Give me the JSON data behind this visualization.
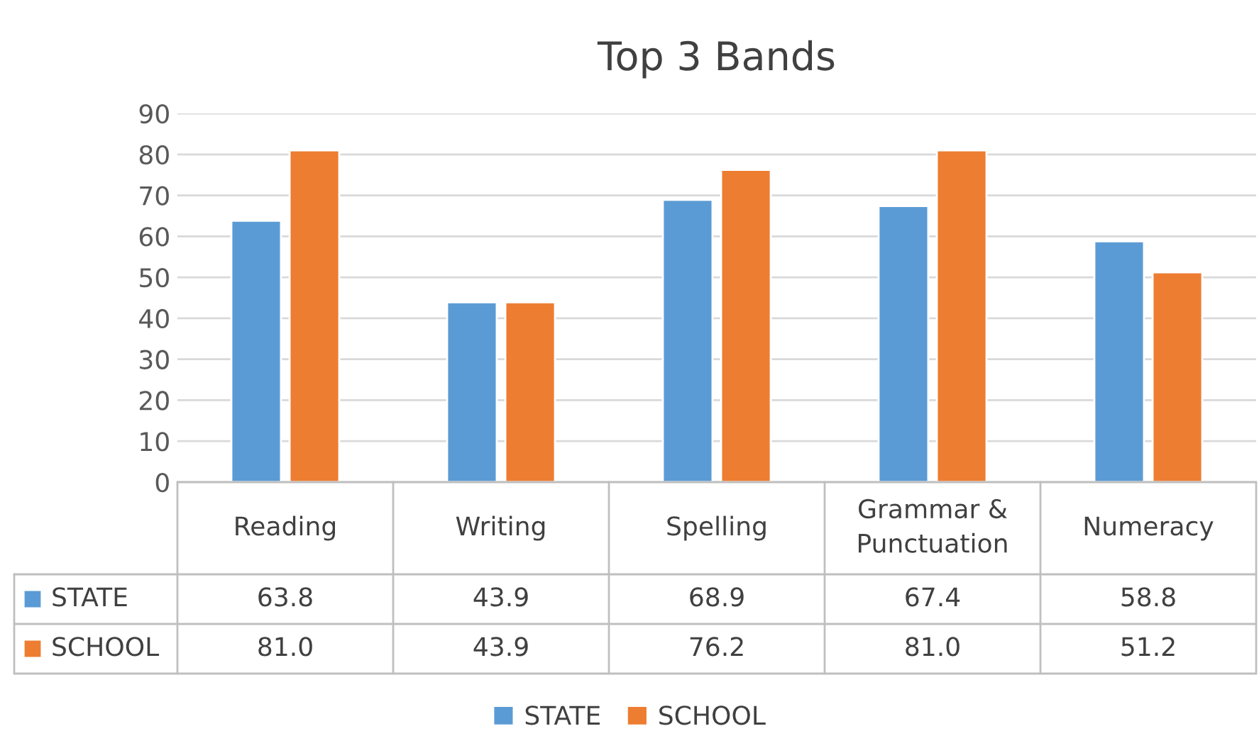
{
  "chart_data": {
    "type": "bar",
    "title": "Top 3 Bands",
    "categories": [
      "Reading",
      "Writing",
      "Spelling",
      "Grammar &\nPunctuation",
      "Numeracy"
    ],
    "series": [
      {
        "name": "STATE",
        "color": "#5b9bd5",
        "values": [
          63.8,
          43.9,
          68.9,
          67.4,
          58.8
        ],
        "value_labels": [
          "63.8",
          "43.9",
          "68.9",
          "67.4",
          "58.8"
        ]
      },
      {
        "name": "SCHOOL",
        "color": "#ed7d31",
        "values": [
          81.0,
          43.9,
          76.2,
          81.0,
          51.2
        ],
        "value_labels": [
          "81.0",
          "43.9",
          "76.2",
          "81.0",
          "51.2"
        ]
      }
    ],
    "ylim": [
      0,
      90
    ],
    "yticks": [
      0,
      10,
      20,
      30,
      40,
      50,
      60,
      70,
      80,
      90
    ],
    "grid": "y",
    "legend": "bottom"
  }
}
